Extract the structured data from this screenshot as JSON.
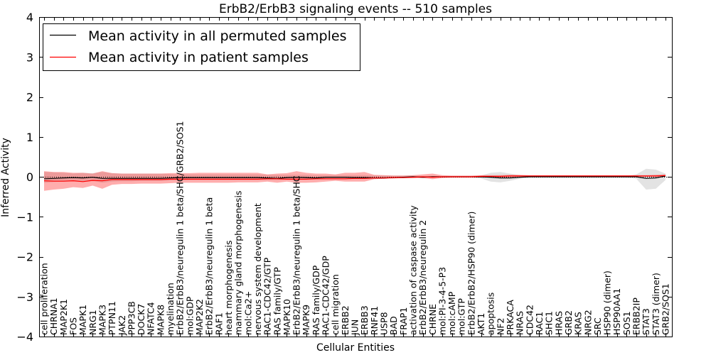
{
  "chart_data": {
    "type": "line",
    "title": "ErbB2/ErbB3 signaling events -- 510 samples",
    "xlabel": "Cellular Entities",
    "ylabel": "Inferred Activity",
    "ylim": [
      -4,
      4
    ],
    "yticks": [
      -4,
      -3,
      -2,
      -1,
      0,
      1,
      2,
      3,
      4
    ],
    "grid": false,
    "legend_position": "top-left",
    "categories": [
      "cell proliferation",
      "CHRNA1",
      "MAP2K1",
      "FOS",
      "MAPK1",
      "NRG1",
      "MAPK3",
      "PTPN11",
      "JAK2",
      "PPP3CB",
      "DOCK7",
      "NFATC4",
      "MAPK8",
      "myelination",
      "ErbB2/ErbB3/neuregulin 1 beta/SHC/GRB2/SOS1",
      "mol:GDP",
      "MAP2K2",
      "ErbB2/ErbB3/neuregulin 1 beta",
      "RAF1",
      "heart morphogenesis",
      "mammary gland morphogenesis",
      "mol:Ca2+",
      "nervous system development",
      "RAC1-CDC42/GTP",
      "RAS family/GTP",
      "MAPK10",
      "ErbB2/ErbB3/neuregulin 1 beta/SHC",
      "MAPK9",
      "RAS family/GDP",
      "RAC1-CDC42/GDP",
      "cell migration",
      "ERBB2",
      "JUN",
      "ERBB3",
      "RNF41",
      "USP8",
      "BAD",
      "FRAP1",
      "activation of caspase activity",
      "ErbB2/ErbB3/neuregulin 2",
      "CHRNE",
      "mol:PI-3-4-5-P3",
      "mol:cAMP",
      "mol:GTP",
      "ErbB2/ErbB2/HSP90 (dimer)",
      "AKT1",
      "apoptosis",
      "NF2",
      "PRKACA",
      "NRAS",
      "CDC42",
      "RAC1",
      "SHC1",
      "HRAS",
      "GRB2",
      "KRAS",
      "NRG2",
      "SRC",
      "HSP90 (dimer)",
      "HSP90AA1",
      "SOS1",
      "ERBB2IP",
      "STAT3",
      "STAT3 (dimer)",
      "GRB2/SOS1"
    ],
    "series": [
      {
        "name": "Mean activity in all permuted samples",
        "color": "#000000",
        "values": [
          -0.05,
          -0.04,
          -0.03,
          -0.02,
          -0.03,
          -0.01,
          -0.04,
          -0.04,
          -0.04,
          -0.04,
          -0.04,
          -0.04,
          -0.04,
          -0.03,
          -0.02,
          -0.02,
          -0.02,
          -0.02,
          -0.02,
          -0.02,
          -0.02,
          -0.02,
          -0.02,
          -0.03,
          -0.04,
          -0.02,
          -0.01,
          -0.02,
          -0.03,
          -0.01,
          -0.01,
          -0.01,
          -0.02,
          -0.02,
          -0.03,
          -0.03,
          -0.02,
          -0.01,
          0.0,
          -0.01,
          0.0,
          0.0,
          0.0,
          0.0,
          0.0,
          0.0,
          -0.01,
          -0.03,
          -0.03,
          -0.01,
          0.0,
          0.0,
          0.0,
          0.0,
          0.0,
          0.0,
          0.0,
          0.0,
          0.0,
          0.0,
          0.0,
          0.0,
          -0.04,
          -0.03,
          0.02
        ],
        "band": [
          [
            -0.15,
            0.12
          ],
          [
            -0.13,
            0.11
          ],
          [
            -0.12,
            0.1
          ],
          [
            -0.11,
            0.08
          ],
          [
            -0.12,
            0.1
          ],
          [
            -0.1,
            0.09
          ],
          [
            -0.15,
            0.12
          ],
          [
            -0.12,
            0.09
          ],
          [
            -0.11,
            0.08
          ],
          [
            -0.11,
            0.08
          ],
          [
            -0.1,
            0.08
          ],
          [
            -0.1,
            0.08
          ],
          [
            -0.1,
            0.08
          ],
          [
            -0.09,
            0.07
          ],
          [
            -0.09,
            0.06
          ],
          [
            -0.08,
            0.06
          ],
          [
            -0.08,
            0.06
          ],
          [
            -0.08,
            0.06
          ],
          [
            -0.08,
            0.06
          ],
          [
            -0.08,
            0.06
          ],
          [
            -0.08,
            0.06
          ],
          [
            -0.08,
            0.06
          ],
          [
            -0.08,
            0.06
          ],
          [
            -0.08,
            0.05
          ],
          [
            -0.08,
            0.05
          ],
          [
            -0.07,
            0.05
          ],
          [
            -0.06,
            0.05
          ],
          [
            -0.06,
            0.05
          ],
          [
            -0.06,
            0.04
          ],
          [
            -0.05,
            0.04
          ],
          [
            -0.05,
            0.04
          ],
          [
            -0.05,
            0.04
          ],
          [
            -0.05,
            0.04
          ],
          [
            -0.05,
            0.04
          ],
          [
            -0.05,
            0.03
          ],
          [
            -0.05,
            0.03
          ],
          [
            -0.04,
            0.03
          ],
          [
            -0.03,
            0.03
          ],
          [
            -0.03,
            0.03
          ],
          [
            -0.03,
            0.02
          ],
          [
            -0.02,
            0.02
          ],
          [
            -0.02,
            0.02
          ],
          [
            -0.02,
            0.02
          ],
          [
            -0.02,
            0.02
          ],
          [
            -0.02,
            0.02
          ],
          [
            -0.04,
            0.03
          ],
          [
            -0.12,
            0.1
          ],
          [
            -0.14,
            0.12
          ],
          [
            -0.1,
            0.08
          ],
          [
            -0.05,
            0.04
          ],
          [
            -0.02,
            0.02
          ],
          [
            -0.02,
            0.02
          ],
          [
            -0.02,
            0.02
          ],
          [
            -0.02,
            0.02
          ],
          [
            -0.02,
            0.02
          ],
          [
            -0.02,
            0.02
          ],
          [
            -0.02,
            0.02
          ],
          [
            -0.02,
            0.02
          ],
          [
            -0.02,
            0.02
          ],
          [
            -0.02,
            0.02
          ],
          [
            -0.02,
            0.02
          ],
          [
            -0.05,
            0.06
          ],
          [
            -0.32,
            0.2
          ],
          [
            -0.3,
            0.18
          ],
          [
            -0.08,
            0.08
          ]
        ]
      },
      {
        "name": "Mean activity in patient samples",
        "color": "#ff0000",
        "values": [
          -0.1,
          -0.11,
          -0.11,
          -0.1,
          -0.12,
          -0.09,
          -0.1,
          -0.07,
          -0.07,
          -0.07,
          -0.07,
          -0.07,
          -0.07,
          -0.06,
          -0.06,
          -0.06,
          -0.06,
          -0.06,
          -0.06,
          -0.06,
          -0.06,
          -0.06,
          -0.06,
          -0.05,
          -0.05,
          -0.06,
          -0.06,
          -0.06,
          -0.05,
          -0.05,
          -0.05,
          -0.05,
          -0.04,
          -0.04,
          -0.03,
          -0.03,
          -0.02,
          -0.02,
          -0.01,
          0.0,
          -0.01,
          0.0,
          0.0,
          0.0,
          0.0,
          0.01,
          0.01,
          0.01,
          0.02,
          0.02,
          0.02,
          0.02,
          0.02,
          0.02,
          0.02,
          0.02,
          0.02,
          0.02,
          0.02,
          0.02,
          0.02,
          0.02,
          0.02,
          0.02,
          0.03
        ],
        "band": [
          [
            -0.35,
            0.14
          ],
          [
            -0.32,
            0.12
          ],
          [
            -0.3,
            0.12
          ],
          [
            -0.26,
            0.1
          ],
          [
            -0.28,
            0.1
          ],
          [
            -0.22,
            0.08
          ],
          [
            -0.3,
            0.14
          ],
          [
            -0.2,
            0.09
          ],
          [
            -0.18,
            0.08
          ],
          [
            -0.18,
            0.08
          ],
          [
            -0.17,
            0.08
          ],
          [
            -0.17,
            0.08
          ],
          [
            -0.17,
            0.08
          ],
          [
            -0.16,
            0.09
          ],
          [
            -0.15,
            0.09
          ],
          [
            -0.15,
            0.09
          ],
          [
            -0.15,
            0.1
          ],
          [
            -0.15,
            0.1
          ],
          [
            -0.15,
            0.1
          ],
          [
            -0.15,
            0.1
          ],
          [
            -0.14,
            0.1
          ],
          [
            -0.14,
            0.1
          ],
          [
            -0.14,
            0.1
          ],
          [
            -0.12,
            0.06
          ],
          [
            -0.15,
            0.08
          ],
          [
            -0.12,
            0.09
          ],
          [
            -0.15,
            0.14
          ],
          [
            -0.15,
            0.1
          ],
          [
            -0.14,
            0.08
          ],
          [
            -0.12,
            0.08
          ],
          [
            -0.1,
            0.06
          ],
          [
            -0.12,
            0.1
          ],
          [
            -0.12,
            0.1
          ],
          [
            -0.12,
            0.12
          ],
          [
            -0.06,
            0.05
          ],
          [
            -0.05,
            0.04
          ],
          [
            -0.04,
            0.03
          ],
          [
            -0.03,
            0.03
          ],
          [
            -0.03,
            0.04
          ],
          [
            -0.03,
            0.06
          ],
          [
            -0.06,
            0.08
          ],
          [
            -0.03,
            0.04
          ],
          [
            -0.02,
            0.03
          ],
          [
            -0.02,
            0.03
          ],
          [
            -0.02,
            0.03
          ],
          [
            -0.02,
            0.04
          ],
          [
            -0.02,
            0.04
          ],
          [
            -0.02,
            0.04
          ],
          [
            -0.01,
            0.05
          ],
          [
            0.0,
            0.05
          ],
          [
            0.0,
            0.04
          ],
          [
            0.0,
            0.04
          ],
          [
            0.0,
            0.04
          ],
          [
            0.0,
            0.04
          ],
          [
            0.0,
            0.04
          ],
          [
            0.0,
            0.04
          ],
          [
            0.0,
            0.04
          ],
          [
            0.0,
            0.04
          ],
          [
            0.0,
            0.04
          ],
          [
            0.0,
            0.04
          ],
          [
            0.0,
            0.04
          ],
          [
            0.0,
            0.04
          ],
          [
            0.0,
            0.04
          ],
          [
            0.0,
            0.05
          ],
          [
            0.0,
            0.06
          ]
        ]
      }
    ]
  }
}
